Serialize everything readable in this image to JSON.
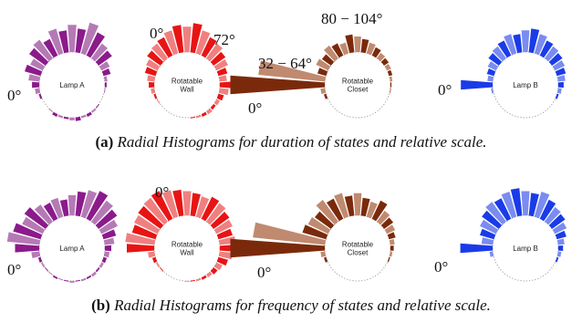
{
  "captions": {
    "a": {
      "letter": "(a)",
      "text": "Radial Histograms for duration of states and relative scale."
    },
    "b": {
      "letter": "(b)",
      "text": "Radial Histograms for frequency of states and relative scale."
    }
  },
  "angle_labels": {
    "a": [
      "0°",
      "0°",
      "72°",
      "80 − 104°",
      "32 − 64°",
      "0°",
      "0°"
    ],
    "b": [
      "0°",
      "0°",
      "0°",
      "0°"
    ]
  },
  "colors": {
    "lamp_a": "#8b1a8b",
    "lamp_a_light": "#b57ab5",
    "wall": "#e81414",
    "wall_light": "#f08080",
    "closet": "#7a2a0a",
    "closet_light": "#c08a70",
    "lamp_b": "#1a3be8",
    "lamp_b_light": "#7a8cf0"
  },
  "chart_data": [
    {
      "type": "radial-histogram",
      "panel": "a",
      "name": "Lamp A",
      "label_lines": [
        "Lamp A"
      ],
      "color": "#8b1a8b",
      "light": "#b57ab5",
      "bins_deg": [
        0,
        10,
        20,
        30,
        40,
        50,
        60,
        70,
        80,
        90,
        100,
        110,
        120,
        130,
        140,
        150,
        160,
        170,
        180,
        190,
        200,
        210,
        220,
        230,
        240,
        250,
        260,
        270,
        280,
        290,
        300,
        310,
        320,
        330,
        340,
        350
      ],
      "values": [
        8,
        12,
        18,
        15,
        22,
        25,
        20,
        28,
        24,
        30,
        26,
        35,
        28,
        20,
        18,
        10,
        8,
        3,
        2,
        1,
        0,
        0,
        1,
        2,
        3,
        2,
        4,
        3,
        2,
        2,
        3,
        1,
        0,
        0,
        2,
        5
      ],
      "rmax": 40
    },
    {
      "type": "radial-histogram",
      "panel": "a",
      "name": "Rotatable Wall",
      "label_lines": [
        "Rotatable",
        "Wall"
      ],
      "color": "#e81414",
      "light": "#f08080",
      "bins_deg": [
        0,
        10,
        20,
        30,
        40,
        50,
        60,
        70,
        80,
        90,
        100,
        110,
        120,
        130,
        140,
        150,
        160,
        170,
        180,
        190,
        200,
        210,
        220,
        230,
        240,
        250,
        260,
        270,
        280,
        290,
        300,
        310,
        320,
        330,
        340,
        350
      ],
      "values": [
        6,
        8,
        12,
        14,
        18,
        20,
        22,
        26,
        30,
        28,
        32,
        26,
        22,
        20,
        16,
        14,
        10,
        8,
        12,
        10,
        6,
        4,
        3,
        4,
        3,
        2,
        1,
        0,
        0,
        0,
        0,
        0,
        0,
        1,
        2,
        4
      ],
      "rmax": 40
    },
    {
      "type": "radial-histogram",
      "panel": "a",
      "name": "Rotatable Closet",
      "label_lines": [
        "Rotatable",
        "Closet"
      ],
      "color": "#7a2a0a",
      "light": "#c08a70",
      "bins_deg": [
        0,
        10,
        20,
        30,
        40,
        50,
        60,
        70,
        80,
        90,
        100,
        110,
        120,
        130,
        140,
        150,
        160,
        170,
        180,
        190,
        200,
        210,
        220,
        230,
        240,
        250,
        260,
        270,
        280,
        290,
        300,
        310,
        320,
        330,
        340,
        350
      ],
      "values": [
        85,
        60,
        8,
        12,
        10,
        14,
        12,
        10,
        16,
        14,
        12,
        10,
        8,
        6,
        5,
        4,
        3,
        2,
        1,
        1,
        0,
        0,
        0,
        0,
        0,
        0,
        0,
        0,
        0,
        0,
        0,
        0,
        0,
        0,
        2,
        4
      ],
      "rmax": 90
    },
    {
      "type": "radial-histogram",
      "panel": "a",
      "name": "Lamp B",
      "label_lines": [
        "Lamp B"
      ],
      "color": "#1a3be8",
      "light": "#7a8cf0",
      "bins_deg": [
        0,
        10,
        20,
        30,
        40,
        50,
        60,
        70,
        80,
        90,
        100,
        110,
        120,
        130,
        140,
        150,
        160,
        170,
        180,
        190,
        200,
        210,
        220,
        230,
        240,
        250,
        260,
        270,
        280,
        290,
        300,
        310,
        320,
        330,
        340,
        350
      ],
      "values": [
        35,
        6,
        8,
        10,
        14,
        16,
        18,
        22,
        20,
        24,
        26,
        22,
        18,
        16,
        14,
        12,
        10,
        8,
        6,
        4,
        2,
        0,
        0,
        0,
        0,
        0,
        0,
        0,
        0,
        0,
        0,
        0,
        0,
        0,
        0,
        2
      ],
      "rmax": 40
    },
    {
      "type": "radial-histogram",
      "panel": "b",
      "name": "Lamp A",
      "label_lines": [
        "Lamp A"
      ],
      "color": "#8b1a8b",
      "light": "#b57ab5",
      "bins_deg": [
        0,
        10,
        20,
        30,
        40,
        50,
        60,
        70,
        80,
        90,
        100,
        110,
        120,
        130,
        140,
        150,
        160,
        170,
        180,
        190,
        200,
        210,
        220,
        230,
        240,
        250,
        260,
        270,
        280,
        290,
        300,
        310,
        320,
        330,
        340,
        350
      ],
      "values": [
        30,
        40,
        35,
        28,
        32,
        26,
        22,
        24,
        20,
        25,
        30,
        34,
        38,
        32,
        28,
        22,
        16,
        12,
        8,
        6,
        4,
        3,
        2,
        3,
        2,
        2,
        1,
        2,
        1,
        1,
        2,
        1,
        1,
        2,
        3,
        10
      ],
      "rmax": 45
    },
    {
      "type": "radial-histogram",
      "panel": "b",
      "name": "Rotatable Wall",
      "label_lines": [
        "Rotatable",
        "Wall"
      ],
      "color": "#e81414",
      "light": "#f08080",
      "bins_deg": [
        0,
        10,
        20,
        30,
        40,
        50,
        60,
        70,
        80,
        90,
        100,
        110,
        120,
        130,
        140,
        150,
        160,
        170,
        180,
        190,
        200,
        210,
        220,
        230,
        240,
        250,
        260,
        270,
        280,
        290,
        300,
        310,
        320,
        330,
        340,
        350
      ],
      "values": [
        34,
        36,
        30,
        32,
        34,
        36,
        38,
        34,
        32,
        30,
        28,
        26,
        30,
        28,
        24,
        22,
        18,
        20,
        22,
        16,
        12,
        8,
        6,
        4,
        3,
        2,
        1,
        1,
        0,
        0,
        0,
        0,
        1,
        2,
        4,
        8
      ],
      "rmax": 45
    },
    {
      "type": "radial-histogram",
      "panel": "b",
      "name": "Rotatable Closet",
      "label_lines": [
        "Rotatable",
        "Closet"
      ],
      "color": "#7a2a0a",
      "light": "#c08a70",
      "bins_deg": [
        0,
        10,
        20,
        30,
        40,
        50,
        60,
        70,
        80,
        90,
        100,
        110,
        120,
        130,
        140,
        150,
        160,
        170,
        180,
        190,
        200,
        210,
        220,
        230,
        240,
        250,
        260,
        270,
        280,
        290,
        300,
        310,
        320,
        330,
        340,
        350
      ],
      "values": [
        85,
        65,
        22,
        20,
        18,
        24,
        20,
        22,
        18,
        20,
        16,
        14,
        18,
        12,
        10,
        8,
        6,
        4,
        3,
        2,
        1,
        0,
        0,
        0,
        0,
        0,
        0,
        0,
        0,
        0,
        0,
        0,
        0,
        0,
        2,
        4
      ],
      "rmax": 90
    },
    {
      "type": "radial-histogram",
      "panel": "b",
      "name": "Lamp B",
      "label_lines": [
        "Lamp B"
      ],
      "color": "#1a3be8",
      "light": "#7a8cf0",
      "bins_deg": [
        0,
        10,
        20,
        30,
        40,
        50,
        60,
        70,
        80,
        90,
        100,
        110,
        120,
        130,
        140,
        150,
        160,
        170,
        180,
        190,
        200,
        210,
        220,
        230,
        240,
        250,
        260,
        270,
        280,
        290,
        300,
        310,
        320,
        330,
        340,
        350
      ],
      "values": [
        40,
        14,
        18,
        22,
        26,
        30,
        28,
        32,
        34,
        30,
        28,
        32,
        26,
        22,
        20,
        16,
        12,
        8,
        6,
        4,
        2,
        0,
        0,
        0,
        0,
        0,
        0,
        0,
        0,
        0,
        0,
        0,
        0,
        0,
        0,
        4
      ],
      "rmax": 45
    }
  ]
}
